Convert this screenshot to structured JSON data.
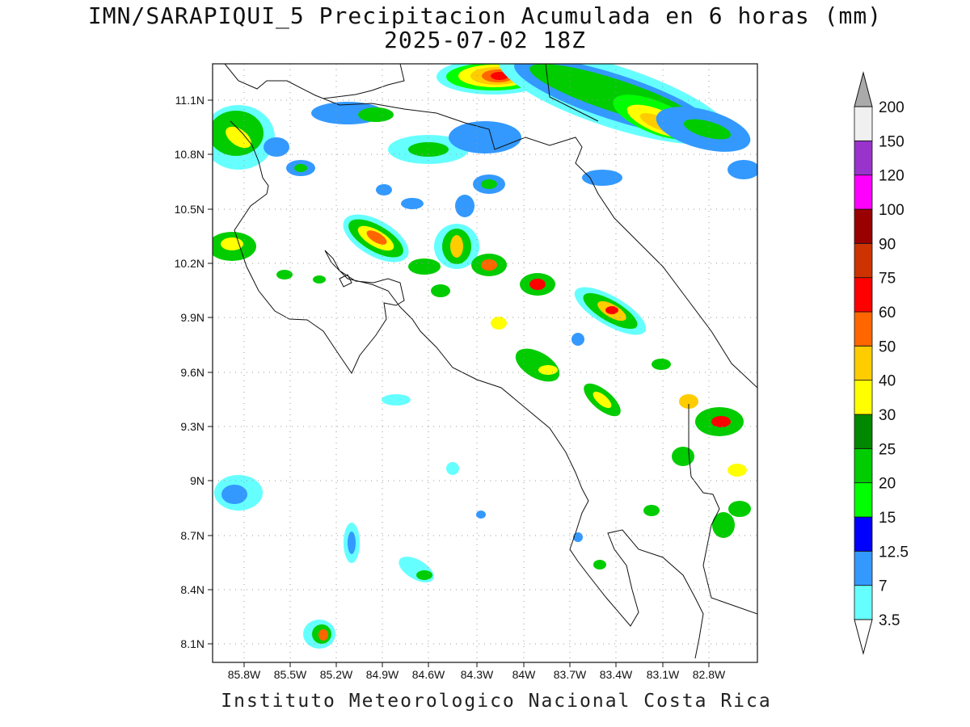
{
  "title": {
    "line1": "IMN/SARAPIQUI_5 Precipitacion Acumulada en 6 horas (mm)",
    "line2": "2025-07-02 18Z"
  },
  "credit": "Instituto Meteorologico Nacional Costa Rica",
  "map": {
    "lon_range": [
      -86.0,
      -82.6
    ],
    "lat_range": [
      8.0,
      11.3
    ],
    "lat_ticks": [
      "11.1N",
      "10.8N",
      "10.5N",
      "10.2N",
      "9.9N",
      "9.6N",
      "9.3N",
      "9N",
      "8.7N",
      "8.4N",
      "8.1N"
    ],
    "lon_ticks": [
      "85.8W",
      "85.5W",
      "85.2W",
      "84.9W",
      "84.6W",
      "84.3W",
      "84W",
      "83.7W",
      "83.4W",
      "83.1W",
      "82.8W"
    ],
    "grid": true
  },
  "colorbar": {
    "levels": [
      "3.5",
      "7",
      "12.5",
      "15",
      "20",
      "25",
      "30",
      "40",
      "50",
      "60",
      "75",
      "90",
      "100",
      "120",
      "150",
      "200"
    ],
    "colors": [
      "#66ffff",
      "#3399ff",
      "#0000ff",
      "#00ff00",
      "#00cc00",
      "#008800",
      "#ffff00",
      "#ffcc00",
      "#ff6600",
      "#ff0000",
      "#cc3300",
      "#990000",
      "#ff00ff",
      "#9933cc",
      "#f0f0f0",
      "#aaaaaa"
    ]
  }
}
